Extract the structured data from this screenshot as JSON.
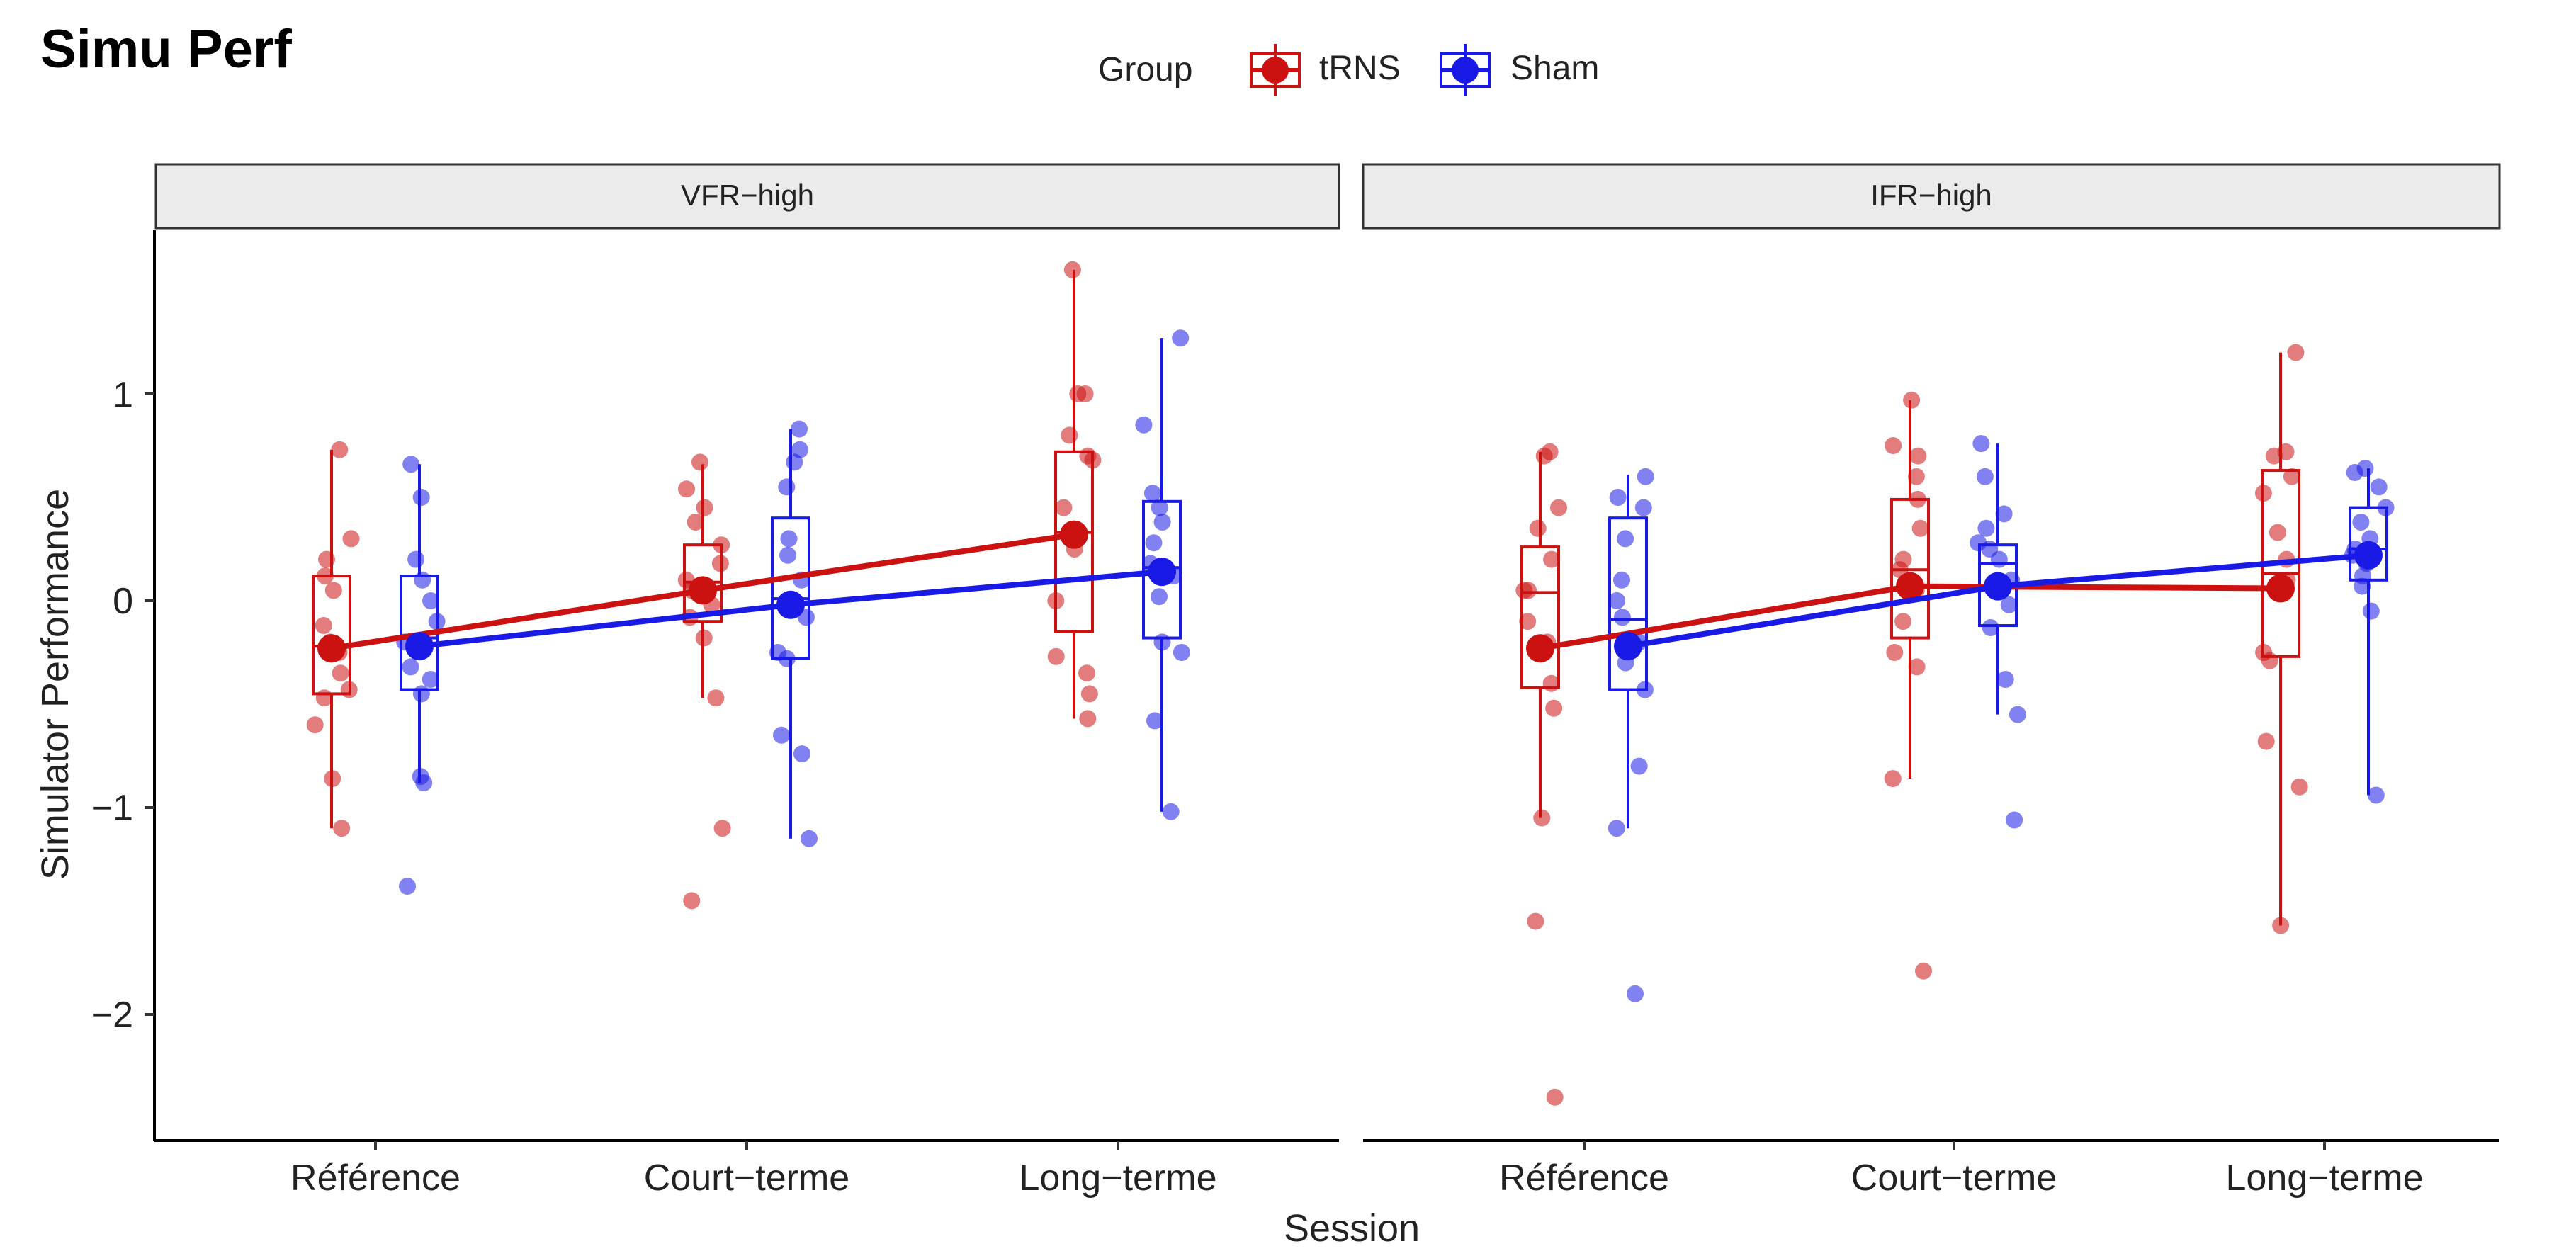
{
  "chart_data": {
    "type": "boxplot",
    "title": "Simu Perf",
    "xlabel": "Session",
    "ylabel": "Simulator Performance",
    "ylim": [
      -2.6,
      1.8
    ],
    "yticks": [
      1,
      0,
      -1,
      -2
    ],
    "ytick_labels": [
      "1",
      "0",
      "−1",
      "−2"
    ],
    "categories": [
      "Référence",
      "Court−terme",
      "Long−terme"
    ],
    "legend": {
      "title": "Group",
      "position": "top",
      "entries": [
        {
          "name": "tRNS",
          "color": "#cc1111"
        },
        {
          "name": "Sham",
          "color": "#1a1ae6"
        }
      ]
    },
    "panels": [
      {
        "name": "VFR−high",
        "series": [
          {
            "name": "tRNS",
            "means": [
              -0.23,
              0.05,
              0.32
            ],
            "boxes": [
              {
                "low": -1.1,
                "q1": -0.45,
                "median": -0.22,
                "q3": 0.12,
                "high": 0.73
              },
              {
                "low": -0.47,
                "q1": -0.1,
                "median": 0.09,
                "q3": 0.27,
                "high": 0.66
              },
              {
                "low": -0.57,
                "q1": -0.15,
                "median": 0.33,
                "q3": 0.72,
                "high": 1.6
              }
            ],
            "points": [
              [
                -1.1,
                -0.86,
                -0.6,
                -0.47,
                -0.43,
                -0.35,
                -0.25,
                -0.2,
                -0.12,
                0.05,
                0.12,
                0.2,
                0.3,
                0.73
              ],
              [
                -1.45,
                -1.1,
                -0.47,
                -0.18,
                -0.08,
                -0.02,
                0.05,
                0.1,
                0.18,
                0.27,
                0.38,
                0.45,
                0.54,
                0.67
              ],
              [
                -0.57,
                -0.45,
                -0.35,
                -0.27,
                0.0,
                0.25,
                0.32,
                0.45,
                0.68,
                0.7,
                0.8,
                1.0,
                1.0,
                1.6
              ]
            ]
          },
          {
            "name": "Sham",
            "means": [
              -0.22,
              -0.02,
              0.14
            ],
            "boxes": [
              {
                "low": -0.88,
                "q1": -0.43,
                "median": -0.18,
                "q3": 0.12,
                "high": 0.66
              },
              {
                "low": -1.15,
                "q1": -0.28,
                "median": 0.01,
                "q3": 0.4,
                "high": 0.83
              },
              {
                "low": -1.02,
                "q1": -0.18,
                "median": 0.16,
                "q3": 0.48,
                "high": 1.27
              }
            ],
            "points": [
              [
                -1.38,
                -0.88,
                -0.85,
                -0.45,
                -0.38,
                -0.32,
                -0.2,
                -0.1,
                0.0,
                0.1,
                0.2,
                0.5,
                0.66
              ],
              [
                -1.15,
                -0.74,
                -0.65,
                -0.28,
                -0.25,
                -0.08,
                0.0,
                0.1,
                0.22,
                0.3,
                0.55,
                0.67,
                0.73,
                0.83
              ],
              [
                -1.02,
                -0.58,
                -0.25,
                -0.2,
                0.02,
                0.12,
                0.18,
                0.28,
                0.38,
                0.45,
                0.52,
                0.85,
                1.27
              ]
            ]
          }
        ]
      },
      {
        "name": "IFR−high",
        "series": [
          {
            "name": "tRNS",
            "means": [
              -0.23,
              0.07,
              0.06
            ],
            "boxes": [
              {
                "low": -1.05,
                "q1": -0.42,
                "median": 0.04,
                "q3": 0.26,
                "high": 0.72
              },
              {
                "low": -0.86,
                "q1": -0.18,
                "median": 0.15,
                "q3": 0.49,
                "high": 0.97
              },
              {
                "low": -1.57,
                "q1": -0.27,
                "median": 0.13,
                "q3": 0.63,
                "high": 1.2
              }
            ],
            "points": [
              [
                -2.4,
                -1.55,
                -1.05,
                -0.52,
                -0.4,
                -0.2,
                -0.1,
                0.05,
                0.05,
                0.2,
                0.35,
                0.45,
                0.7,
                0.72
              ],
              [
                -1.79,
                -0.86,
                -0.32,
                -0.25,
                -0.1,
                0.05,
                0.15,
                0.2,
                0.35,
                0.49,
                0.6,
                0.7,
                0.75,
                0.97
              ],
              [
                -1.57,
                -0.9,
                -0.68,
                -0.29,
                -0.25,
                0.1,
                0.2,
                0.33,
                0.52,
                0.6,
                0.7,
                0.72,
                1.2
              ]
            ]
          },
          {
            "name": "Sham",
            "means": [
              -0.22,
              0.07,
              0.22
            ],
            "boxes": [
              {
                "low": -1.1,
                "q1": -0.43,
                "median": -0.09,
                "q3": 0.4,
                "high": 0.61
              },
              {
                "low": -0.55,
                "q1": -0.12,
                "median": 0.18,
                "q3": 0.27,
                "high": 0.76
              },
              {
                "low": -0.94,
                "q1": 0.1,
                "median": 0.25,
                "q3": 0.45,
                "high": 0.64
              }
            ],
            "points": [
              [
                -1.9,
                -1.1,
                -0.8,
                -0.43,
                -0.3,
                -0.2,
                -0.08,
                0.0,
                0.1,
                0.3,
                0.45,
                0.5,
                0.6
              ],
              [
                -1.06,
                -0.55,
                -0.38,
                -0.13,
                -0.02,
                0.1,
                0.2,
                0.25,
                0.28,
                0.35,
                0.42,
                0.6,
                0.76
              ],
              [
                -0.94,
                -0.05,
                0.07,
                0.12,
                0.18,
                0.22,
                0.25,
                0.3,
                0.38,
                0.45,
                0.55,
                0.62,
                0.64
              ]
            ]
          }
        ]
      }
    ]
  }
}
